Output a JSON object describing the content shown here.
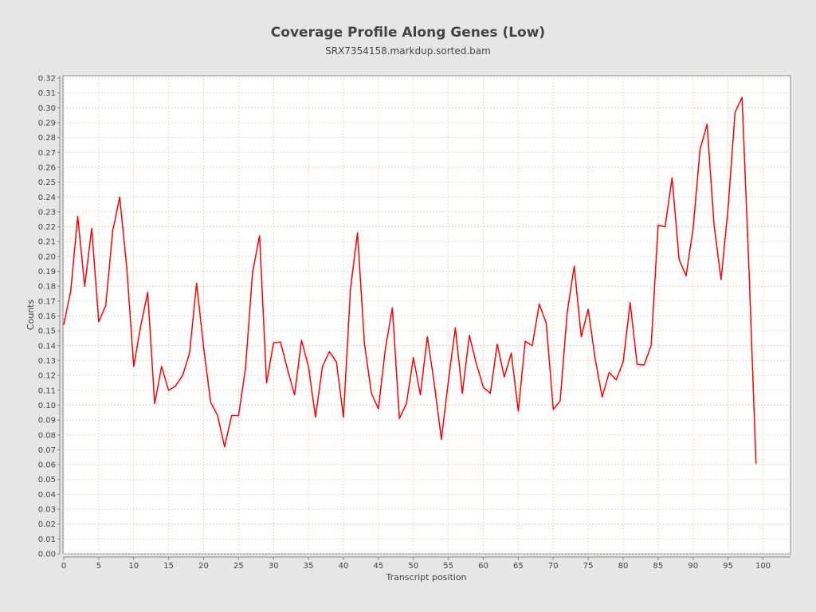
{
  "chart_data": {
    "type": "line",
    "title": "Coverage Profile Along Genes (Low)",
    "subtitle": "SRX7354158.markdup.sorted.bam",
    "xlabel": "Transcript position",
    "ylabel": "Counts",
    "xlim": [
      0,
      104
    ],
    "ylim": [
      0,
      0.32
    ],
    "grid": true,
    "series_color": "#ff0000",
    "grid_color": "#f0c8a0",
    "x_ticks": [
      "0",
      "5",
      "10",
      "15",
      "20",
      "25",
      "30",
      "35",
      "40",
      "45",
      "50",
      "55",
      "60",
      "65",
      "70",
      "75",
      "80",
      "85",
      "90",
      "95",
      "100"
    ],
    "y_ticks": [
      "0.00",
      "0.01",
      "0.02",
      "0.03",
      "0.04",
      "0.05",
      "0.06",
      "0.07",
      "0.08",
      "0.09",
      "0.10",
      "0.11",
      "0.12",
      "0.13",
      "0.14",
      "0.15",
      "0.16",
      "0.17",
      "0.18",
      "0.19",
      "0.20",
      "0.21",
      "0.22",
      "0.23",
      "0.24",
      "0.25",
      "0.26",
      "0.27",
      "0.28",
      "0.29",
      "0.30",
      "0.31",
      "0.32"
    ],
    "series": [
      {
        "name": "Counts",
        "values": [
          0.154,
          0.177,
          0.227,
          0.18,
          0.219,
          0.156,
          0.167,
          0.217,
          0.24,
          0.193,
          0.126,
          0.153,
          0.176,
          0.101,
          0.126,
          0.11,
          0.113,
          0.12,
          0.135,
          0.182,
          0.139,
          0.102,
          0.093,
          0.072,
          0.093,
          0.093,
          0.125,
          0.189,
          0.214,
          0.115,
          0.142,
          0.1425,
          0.124,
          0.107,
          0.1436,
          0.126,
          0.092,
          0.126,
          0.136,
          0.129,
          0.092,
          0.178,
          0.216,
          0.1415,
          0.108,
          0.0975,
          0.138,
          0.1655,
          0.091,
          0.101,
          0.132,
          0.107,
          0.146,
          0.114,
          0.077,
          0.116,
          0.152,
          0.108,
          0.147,
          0.128,
          0.112,
          0.108,
          0.141,
          0.119,
          0.135,
          0.096,
          0.143,
          0.14,
          0.168,
          0.155,
          0.097,
          0.103,
          0.1625,
          0.1935,
          0.146,
          0.1645,
          0.131,
          0.1055,
          0.122,
          0.117,
          0.129,
          0.169,
          0.1275,
          0.127,
          0.14,
          0.221,
          0.22,
          0.253,
          0.198,
          0.187,
          0.219,
          0.272,
          0.289,
          0.221,
          0.1845,
          0.232,
          0.297,
          0.307,
          0.19,
          0.0605
        ]
      }
    ]
  }
}
